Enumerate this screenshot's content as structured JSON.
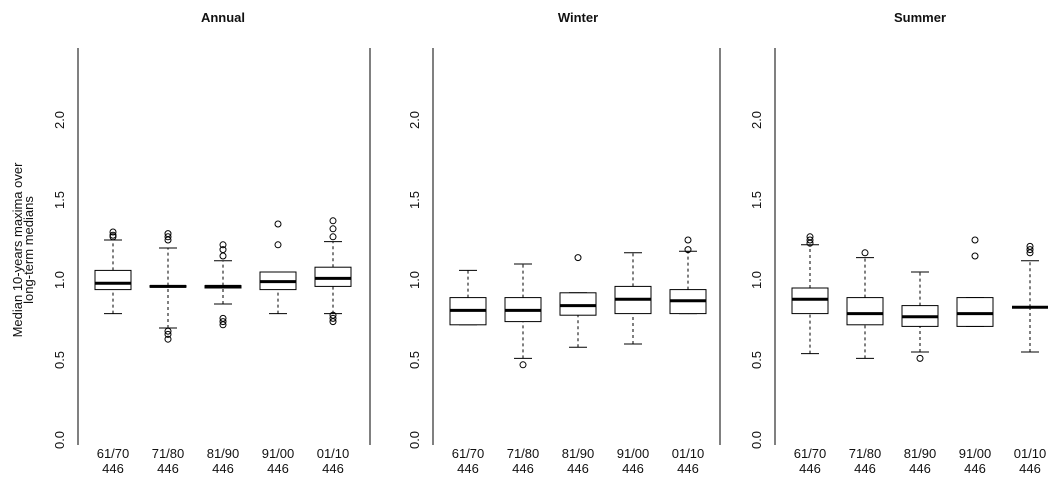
{
  "chart_data": [
    {
      "type": "box",
      "title": "Annual",
      "ylabel": [
        "Median 10-years maxima over",
        "long-term medians"
      ],
      "categories": [
        "61/70",
        "71/80",
        "81/90",
        "91/00",
        "01/10"
      ],
      "counts": [
        446,
        446,
        446,
        446,
        446
      ],
      "ylim": [
        0,
        2.4
      ],
      "yticks": [
        {
          "value": 0,
          "label": "0.0"
        },
        {
          "value": 0.5,
          "label": "0.5"
        },
        {
          "value": 1,
          "label": "1.0"
        },
        {
          "value": 1.5,
          "label": "1.5"
        },
        {
          "value": 2,
          "label": "2.0"
        }
      ],
      "boxes": [
        {
          "low": 0.79,
          "q1": 0.94,
          "median": 0.98,
          "q3": 1.06,
          "high": 1.25,
          "outliers": [
            1.27,
            1.28,
            1.3
          ]
        },
        {
          "low": 0.7,
          "q1": 0.955,
          "median": 0.96,
          "q3": 0.965,
          "high": 1.2,
          "outliers": [
            0.63,
            0.66,
            0.68,
            1.25,
            1.27,
            1.29
          ]
        },
        {
          "low": 0.85,
          "q1": 0.95,
          "median": 0.96,
          "q3": 0.965,
          "high": 1.12,
          "outliers": [
            0.72,
            0.74,
            0.76,
            1.15,
            1.19,
            1.22
          ]
        },
        {
          "low": 0.79,
          "q1": 0.94,
          "median": 0.99,
          "q3": 1.05,
          "high": 1.05,
          "outliers": [
            1.22,
            1.35
          ]
        },
        {
          "low": 0.79,
          "q1": 0.96,
          "median": 1.01,
          "q3": 1.08,
          "high": 1.24,
          "outliers": [
            0.74,
            0.76,
            0.78,
            1.27,
            1.32,
            1.37
          ]
        }
      ]
    },
    {
      "type": "box",
      "title": "Winter",
      "categories": [
        "61/70",
        "71/80",
        "81/90",
        "91/00",
        "01/10"
      ],
      "counts": [
        446,
        446,
        446,
        446,
        446
      ],
      "ylim": [
        0,
        2.4
      ],
      "yticks": [
        {
          "value": 0,
          "label": "0.0"
        },
        {
          "value": 0.5,
          "label": "0.5"
        },
        {
          "value": 1,
          "label": "1.0"
        },
        {
          "value": 1.5,
          "label": "1.5"
        },
        {
          "value": 2,
          "label": "2.0"
        }
      ],
      "boxes": [
        {
          "low": 0.72,
          "q1": 0.72,
          "median": 0.81,
          "q3": 0.89,
          "high": 1.06,
          "outliers": []
        },
        {
          "low": 0.51,
          "q1": 0.74,
          "median": 0.81,
          "q3": 0.89,
          "high": 1.1,
          "outliers": [
            0.47
          ]
        },
        {
          "low": 0.58,
          "q1": 0.78,
          "median": 0.84,
          "q3": 0.92,
          "high": 0.92,
          "outliers": [
            1.14
          ]
        },
        {
          "low": 0.6,
          "q1": 0.79,
          "median": 0.88,
          "q3": 0.96,
          "high": 1.17,
          "outliers": []
        },
        {
          "low": 0.79,
          "q1": 0.79,
          "median": 0.87,
          "q3": 0.94,
          "high": 1.18,
          "outliers": [
            1.19,
            1.25
          ]
        }
      ]
    },
    {
      "type": "box",
      "title": "Summer",
      "categories": [
        "61/70",
        "71/80",
        "81/90",
        "91/00",
        "01/10"
      ],
      "counts": [
        446,
        446,
        446,
        446,
        446
      ],
      "ylim": [
        0,
        2.4
      ],
      "yticks": [
        {
          "value": 0,
          "label": "0.0"
        },
        {
          "value": 0.5,
          "label": "0.5"
        },
        {
          "value": 1,
          "label": "1.0"
        },
        {
          "value": 1.5,
          "label": "1.5"
        },
        {
          "value": 2,
          "label": "2.0"
        }
      ],
      "boxes": [
        {
          "low": 0.54,
          "q1": 0.79,
          "median": 0.88,
          "q3": 0.95,
          "high": 1.22,
          "outliers": [
            1.23,
            1.25,
            1.27
          ]
        },
        {
          "low": 0.51,
          "q1": 0.72,
          "median": 0.79,
          "q3": 0.89,
          "high": 1.14,
          "outliers": [
            1.17
          ]
        },
        {
          "low": 0.55,
          "q1": 0.71,
          "median": 0.77,
          "q3": 0.84,
          "high": 1.05,
          "outliers": [
            0.51
          ]
        },
        {
          "low": 0.71,
          "q1": 0.71,
          "median": 0.79,
          "q3": 0.89,
          "high": 0.89,
          "outliers": [
            1.15,
            1.25
          ]
        },
        {
          "low": 0.55,
          "q1": 0.83,
          "median": 0.83,
          "q3": 0.83,
          "high": 1.12,
          "outliers": [
            1.17,
            1.19,
            1.21
          ]
        }
      ]
    }
  ]
}
